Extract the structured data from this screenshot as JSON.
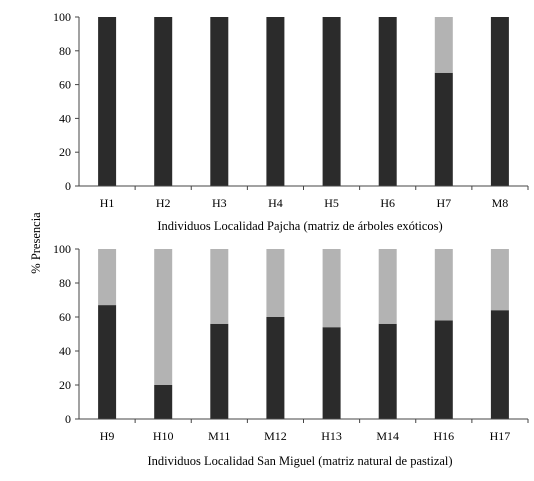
{
  "figure": {
    "ylabel": "% Presencia"
  },
  "colors": {
    "dark": "#2b2b2b",
    "light": "#b3b3b3",
    "axis": "#444444"
  },
  "chart_data": [
    {
      "type": "bar",
      "stacked": true,
      "xlabel": "Individuos Localidad Pajcha (matriz de árboles exóticos)",
      "ylabel": "% Presencia",
      "ylim": [
        0,
        100
      ],
      "yticks": [
        0,
        20,
        40,
        60,
        80,
        100
      ],
      "grid": false,
      "categories": [
        "H1",
        "H2",
        "H3",
        "H4",
        "H5",
        "H6",
        "H7",
        "M8"
      ],
      "series": [
        {
          "color": "#2b2b2b",
          "values": [
            100,
            100,
            100,
            100,
            100,
            100,
            67,
            100
          ]
        },
        {
          "color": "#b3b3b3",
          "values": [
            0,
            0,
            0,
            0,
            0,
            0,
            33,
            0
          ]
        }
      ]
    },
    {
      "type": "bar",
      "stacked": true,
      "xlabel": "Individuos Localidad San Miguel (matriz natural de pastizal)",
      "ylabel": "% Presencia",
      "ylim": [
        0,
        100
      ],
      "yticks": [
        0,
        20,
        40,
        60,
        80,
        100
      ],
      "grid": false,
      "categories": [
        "H9",
        "H10",
        "M11",
        "M12",
        "H13",
        "M14",
        "H16",
        "H17"
      ],
      "series": [
        {
          "color": "#2b2b2b",
          "values": [
            67,
            20,
            56,
            60,
            54,
            56,
            58,
            64
          ]
        },
        {
          "color": "#b3b3b3",
          "values": [
            33,
            80,
            44,
            40,
            46,
            44,
            42,
            36
          ]
        }
      ]
    }
  ]
}
